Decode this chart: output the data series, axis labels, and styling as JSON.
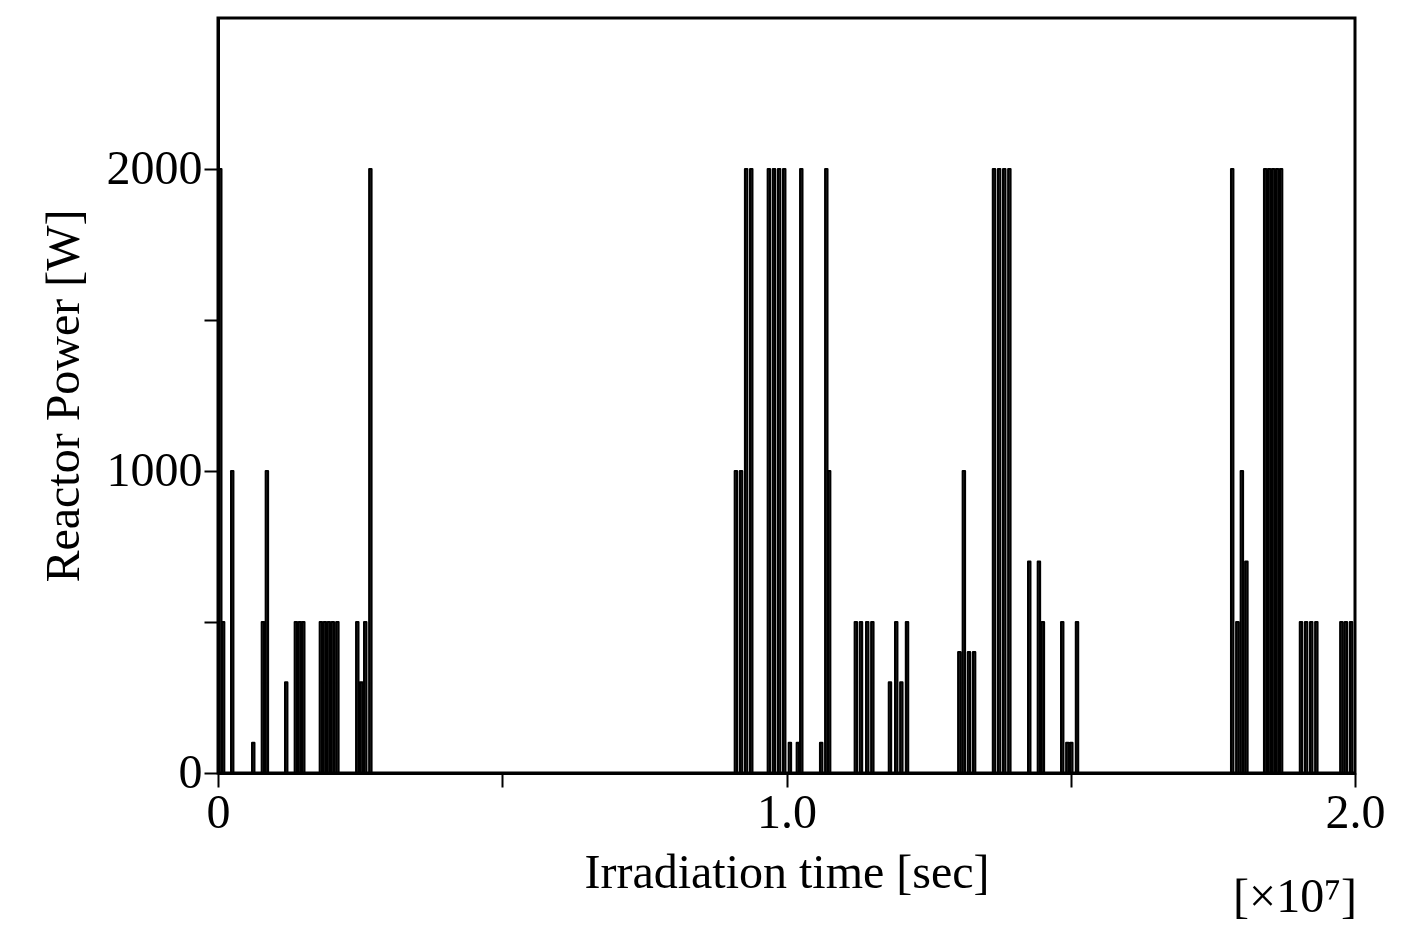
{
  "chart_data": {
    "type": "step",
    "xlabel": "Irradiation time [sec]",
    "ylabel": "Reactor Power [W]",
    "annotations": [
      "[×10⁷]"
    ],
    "xlim": [
      0,
      2.0
    ],
    "ylim": [
      0,
      2500
    ],
    "xticks": [
      {
        "value": 0,
        "label": "0"
      },
      {
        "value": 0.5,
        "label": null
      },
      {
        "value": 1.0,
        "label": "1.0"
      },
      {
        "value": 1.5,
        "label": null
      },
      {
        "value": 2.0,
        "label": "2.0"
      }
    ],
    "yticks": [
      0,
      {
        "value": 500,
        "label": null
      },
      1000,
      {
        "value": 1500,
        "label": null
      },
      2000
    ],
    "grid": false,
    "marker": "none",
    "line_style": "solid",
    "series": [
      {
        "color": "#000000",
        "x": [
          0,
          0.002,
          0.006,
          0.007,
          0.011,
          0.023,
          0.027,
          0.06,
          0.064,
          0.077,
          0.081,
          0.084,
          0.088,
          0.118,
          0.122,
          0.135,
          0.139,
          0.142,
          0.146,
          0.148,
          0.152,
          0.179,
          0.183,
          0.186,
          0.19,
          0.193,
          0.197,
          0.2,
          0.204,
          0.208,
          0.212,
          0.243,
          0.247,
          0.25,
          0.254,
          0.257,
          0.261,
          0.266,
          0.27,
          0.909,
          0.913,
          0.918,
          0.922,
          0.927,
          0.931,
          0.936,
          0.94,
          0.967,
          0.971,
          0.976,
          0.98,
          0.985,
          0.989,
          0.994,
          0.998,
          1.004,
          1.008,
          1.018,
          1.022,
          1.024,
          1.028,
          1.059,
          1.063,
          1.068,
          1.072,
          1.073,
          1.077,
          1.12,
          1.124,
          1.129,
          1.133,
          1.14,
          1.144,
          1.149,
          1.153,
          1.18,
          1.184,
          1.191,
          1.195,
          1.2,
          1.204,
          1.21,
          1.214,
          1.302,
          1.306,
          1.31,
          1.314,
          1.319,
          1.323,
          1.328,
          1.332,
          1.363,
          1.367,
          1.372,
          1.376,
          1.381,
          1.385,
          1.39,
          1.394,
          1.425,
          1.429,
          1.442,
          1.446,
          1.449,
          1.453,
          1.483,
          1.487,
          1.492,
          1.496,
          1.499,
          1.503,
          1.509,
          1.513,
          1.782,
          1.786,
          1.791,
          1.795,
          1.799,
          1.803,
          1.807,
          1.811,
          1.84,
          1.844,
          1.847,
          1.851,
          1.854,
          1.858,
          1.861,
          1.865,
          1.868,
          1.872,
          1.903,
          1.907,
          1.912,
          1.916,
          1.921,
          1.925,
          1.93,
          1.934,
          1.974,
          1.978,
          1.982,
          1.986,
          1.991,
          1.995
        ],
        "values": [
          0,
          2000,
          0,
          500,
          0,
          1000,
          0,
          100,
          0,
          500,
          0,
          1000,
          0,
          300,
          0,
          500,
          0,
          500,
          0,
          500,
          0,
          500,
          0,
          500,
          0,
          500,
          0,
          500,
          0,
          500,
          0,
          500,
          0,
          300,
          0,
          500,
          0,
          2000,
          0,
          1000,
          0,
          1000,
          0,
          2000,
          0,
          2000,
          0,
          2000,
          0,
          2000,
          0,
          2000,
          0,
          2000,
          0,
          100,
          0,
          100,
          0,
          2000,
          0,
          100,
          0,
          2000,
          0,
          1000,
          0,
          500,
          0,
          500,
          0,
          500,
          0,
          500,
          0,
          300,
          0,
          500,
          0,
          300,
          0,
          500,
          0,
          400,
          0,
          1000,
          0,
          400,
          0,
          400,
          0,
          2000,
          0,
          2000,
          0,
          2000,
          0,
          2000,
          0,
          700,
          0,
          700,
          0,
          500,
          0,
          500,
          0,
          100,
          0,
          100,
          0,
          500,
          0,
          2000,
          0,
          500,
          0,
          1000,
          0,
          700,
          0,
          2000,
          0,
          2000,
          0,
          2000,
          0,
          2000,
          0,
          2000,
          0,
          500,
          0,
          500,
          0,
          500,
          0,
          500,
          0,
          500,
          0,
          500,
          0,
          500,
          0
        ]
      }
    ]
  }
}
